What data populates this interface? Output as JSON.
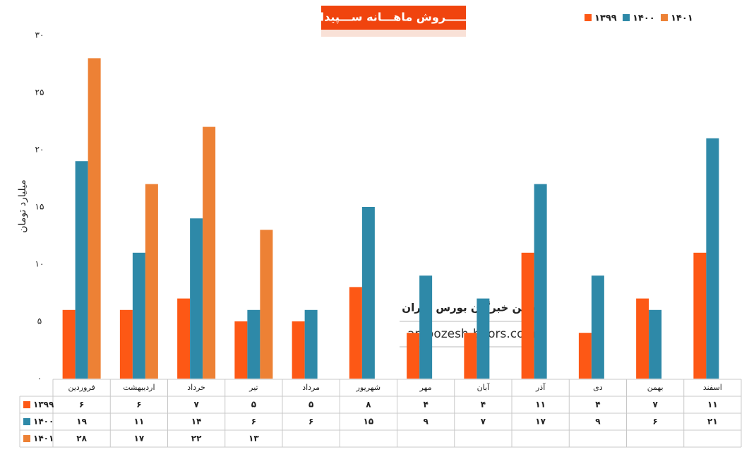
{
  "chart_data": {
    "type": "bar",
    "title": "فـــــروش ماهـــانه ســـپیدار",
    "y_label": "میلیارد تومان",
    "categories": [
      "فروردین",
      "اردیبهشت",
      "خرداد",
      "تیر",
      "مرداد",
      "شهریور",
      "مهر",
      "آبان",
      "آذر",
      "دی",
      "بهمن",
      "اسفند"
    ],
    "series": [
      {
        "name": "۱۳۹۹",
        "color": "#fd5815",
        "values": [
          6,
          6,
          7,
          5,
          5,
          8,
          4,
          4,
          11,
          4,
          7,
          11
        ],
        "value_labels": [
          "۶",
          "۶",
          "۷",
          "۵",
          "۵",
          "۸",
          "۴",
          "۴",
          "۱۱",
          "۴",
          "۷",
          "۱۱"
        ]
      },
      {
        "name": "۱۴۰۰",
        "color": "#2e89a8",
        "values": [
          19,
          11,
          14,
          6,
          6,
          15,
          9,
          7,
          17,
          9,
          6,
          21
        ],
        "value_labels": [
          "۱۹",
          "۱۱",
          "۱۴",
          "۶",
          "۶",
          "۱۵",
          "۹",
          "۷",
          "۱۷",
          "۹",
          "۶",
          "۲۱"
        ]
      },
      {
        "name": "۱۴۰۱",
        "color": "#ed8135",
        "values": [
          28,
          17,
          22,
          13,
          null,
          null,
          null,
          null,
          null,
          null,
          null,
          null
        ],
        "value_labels": [
          "۲۸",
          "۱۷",
          "۲۲",
          "۱۳",
          null,
          null,
          null,
          null,
          null,
          null,
          null,
          null
        ]
      }
    ],
    "ylim": [
      0,
      30
    ],
    "yticks": [
      {
        "value": 0,
        "label": "۰"
      },
      {
        "value": 5,
        "label": "۵"
      },
      {
        "value": 10,
        "label": "۱۰"
      },
      {
        "value": 15,
        "label": "۱۵"
      },
      {
        "value": 20,
        "label": "۲۰"
      },
      {
        "value": 25,
        "label": "۲۵"
      },
      {
        "value": 30,
        "label": "۳۰"
      }
    ],
    "grid": false,
    "legend": "top-right",
    "annotations": [
      "انجمن خبرگان بورس تهران",
      "amoozesh-boors.com"
    ]
  }
}
